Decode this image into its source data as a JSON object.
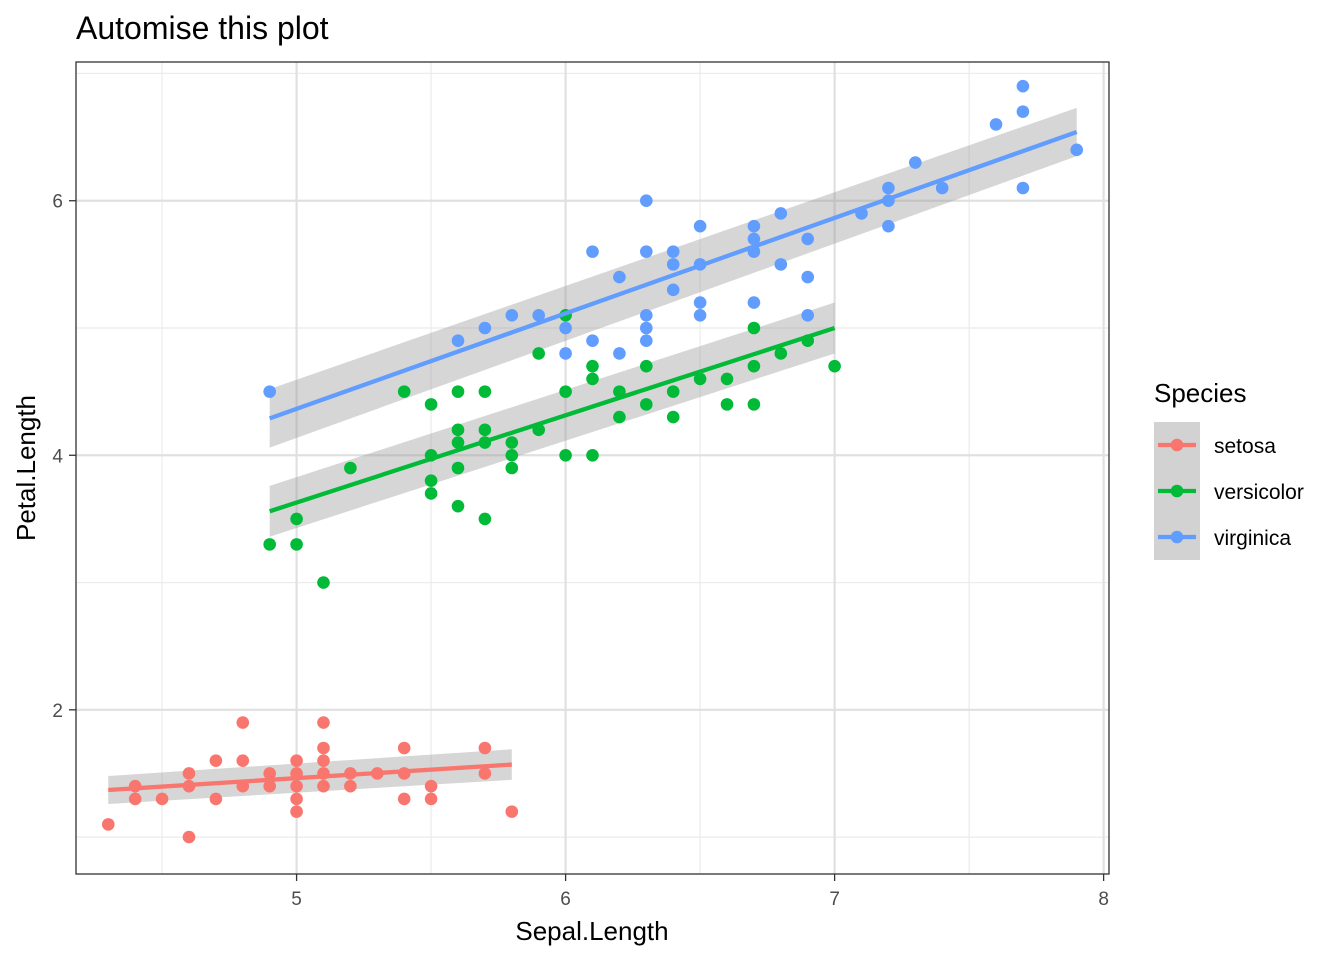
{
  "chart_data": {
    "type": "scatter",
    "title": "Automise this plot",
    "xlabel": "Sepal.Length",
    "ylabel": "Petal.Length",
    "xlim": [
      4.18,
      8.02
    ],
    "ylim": [
      0.71,
      7.09
    ],
    "x_ticks": [
      5,
      6,
      7,
      8
    ],
    "y_ticks": [
      2,
      4,
      6
    ],
    "x_tick_labels": [
      "5",
      "6",
      "7",
      "8"
    ],
    "y_tick_labels": [
      "2",
      "4",
      "6"
    ],
    "grid": true,
    "legend": {
      "title": "Species",
      "position": "right"
    },
    "series": [
      {
        "name": "setosa",
        "color": "#F8766D",
        "points": [
          [
            4.3,
            1.1
          ],
          [
            4.4,
            1.4
          ],
          [
            4.4,
            1.3
          ],
          [
            4.5,
            1.3
          ],
          [
            4.6,
            1.5
          ],
          [
            4.6,
            1.4
          ],
          [
            4.6,
            1.0
          ],
          [
            4.7,
            1.6
          ],
          [
            4.7,
            1.3
          ],
          [
            4.8,
            1.9
          ],
          [
            4.8,
            1.6
          ],
          [
            4.8,
            1.4
          ],
          [
            4.9,
            1.5
          ],
          [
            4.9,
            1.4
          ],
          [
            5.0,
            1.6
          ],
          [
            5.0,
            1.5
          ],
          [
            5.0,
            1.4
          ],
          [
            5.0,
            1.3
          ],
          [
            5.0,
            1.2
          ],
          [
            5.1,
            1.9
          ],
          [
            5.1,
            1.7
          ],
          [
            5.1,
            1.6
          ],
          [
            5.1,
            1.5
          ],
          [
            5.1,
            1.4
          ],
          [
            5.2,
            1.5
          ],
          [
            5.2,
            1.4
          ],
          [
            5.3,
            1.5
          ],
          [
            5.4,
            1.7
          ],
          [
            5.4,
            1.5
          ],
          [
            5.4,
            1.3
          ],
          [
            5.5,
            1.4
          ],
          [
            5.5,
            1.3
          ],
          [
            5.7,
            1.7
          ],
          [
            5.7,
            1.5
          ],
          [
            5.8,
            1.2
          ]
        ],
        "fit": {
          "x": [
            4.3,
            5.8
          ],
          "y": [
            1.37,
            1.57
          ],
          "se": [
            0.11,
            0.12
          ]
        }
      },
      {
        "name": "versicolor",
        "color": "#00BA38",
        "points": [
          [
            4.9,
            3.3
          ],
          [
            5.0,
            3.5
          ],
          [
            5.0,
            3.3
          ],
          [
            5.1,
            3.0
          ],
          [
            5.2,
            3.9
          ],
          [
            5.4,
            4.5
          ],
          [
            5.5,
            4.4
          ],
          [
            5.5,
            4.0
          ],
          [
            5.5,
            3.8
          ],
          [
            5.5,
            3.7
          ],
          [
            5.6,
            4.5
          ],
          [
            5.6,
            4.2
          ],
          [
            5.6,
            4.1
          ],
          [
            5.6,
            3.9
          ],
          [
            5.6,
            3.6
          ],
          [
            5.7,
            4.5
          ],
          [
            5.7,
            4.2
          ],
          [
            5.7,
            4.1
          ],
          [
            5.7,
            3.5
          ],
          [
            5.8,
            4.1
          ],
          [
            5.8,
            4.0
          ],
          [
            5.8,
            3.9
          ],
          [
            5.9,
            4.8
          ],
          [
            5.9,
            4.2
          ],
          [
            6.0,
            5.1
          ],
          [
            6.0,
            4.5
          ],
          [
            6.0,
            4.0
          ],
          [
            6.1,
            4.7
          ],
          [
            6.1,
            4.6
          ],
          [
            6.1,
            4.0
          ],
          [
            6.2,
            4.5
          ],
          [
            6.2,
            4.3
          ],
          [
            6.3,
            4.7
          ],
          [
            6.3,
            4.4
          ],
          [
            6.4,
            4.5
          ],
          [
            6.4,
            4.3
          ],
          [
            6.5,
            4.6
          ],
          [
            6.6,
            4.6
          ],
          [
            6.6,
            4.4
          ],
          [
            6.7,
            5.0
          ],
          [
            6.7,
            4.7
          ],
          [
            6.7,
            4.4
          ],
          [
            6.8,
            4.8
          ],
          [
            6.9,
            4.9
          ],
          [
            7.0,
            4.7
          ]
        ],
        "fit": {
          "x": [
            4.9,
            7.0
          ],
          "y": [
            3.56,
            5.0
          ],
          "se": [
            0.2,
            0.2
          ]
        }
      },
      {
        "name": "virginica",
        "color": "#619CFF",
        "points": [
          [
            4.9,
            4.5
          ],
          [
            5.6,
            4.9
          ],
          [
            5.7,
            5.0
          ],
          [
            5.8,
            5.1
          ],
          [
            5.9,
            5.1
          ],
          [
            6.0,
            5.0
          ],
          [
            6.0,
            4.8
          ],
          [
            6.1,
            5.6
          ],
          [
            6.1,
            4.9
          ],
          [
            6.2,
            5.4
          ],
          [
            6.2,
            4.8
          ],
          [
            6.3,
            6.0
          ],
          [
            6.3,
            5.6
          ],
          [
            6.3,
            5.1
          ],
          [
            6.3,
            5.0
          ],
          [
            6.3,
            4.9
          ],
          [
            6.4,
            5.6
          ],
          [
            6.4,
            5.5
          ],
          [
            6.4,
            5.3
          ],
          [
            6.5,
            5.8
          ],
          [
            6.5,
            5.5
          ],
          [
            6.5,
            5.2
          ],
          [
            6.5,
            5.1
          ],
          [
            6.7,
            5.8
          ],
          [
            6.7,
            5.7
          ],
          [
            6.7,
            5.6
          ],
          [
            6.7,
            5.2
          ],
          [
            6.8,
            5.9
          ],
          [
            6.8,
            5.5
          ],
          [
            6.9,
            5.7
          ],
          [
            6.9,
            5.4
          ],
          [
            6.9,
            5.1
          ],
          [
            7.1,
            5.9
          ],
          [
            7.2,
            6.1
          ],
          [
            7.2,
            6.0
          ],
          [
            7.2,
            5.8
          ],
          [
            7.3,
            6.3
          ],
          [
            7.4,
            6.1
          ],
          [
            7.6,
            6.6
          ],
          [
            7.7,
            6.9
          ],
          [
            7.7,
            6.7
          ],
          [
            7.7,
            6.1
          ],
          [
            7.9,
            6.4
          ]
        ],
        "fit": {
          "x": [
            4.9,
            7.9
          ],
          "y": [
            4.29,
            6.54
          ],
          "se": [
            0.23,
            0.19
          ]
        }
      }
    ]
  }
}
